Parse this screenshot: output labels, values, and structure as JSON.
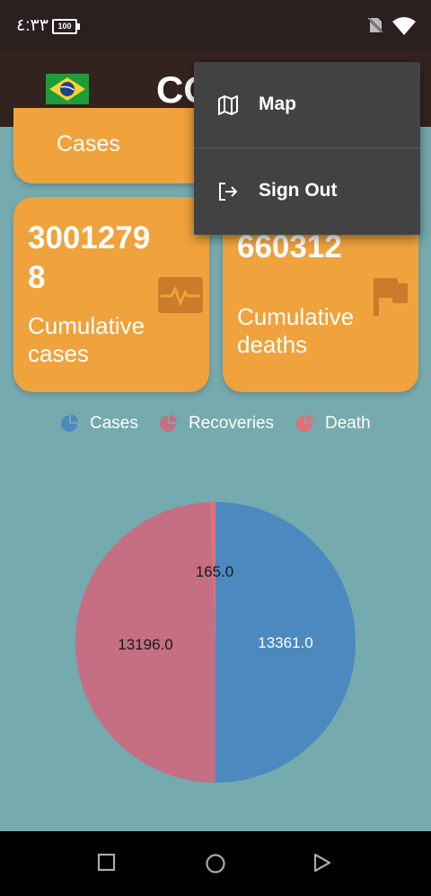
{
  "status_bar": {
    "time": "٤:٣٣",
    "battery": "100"
  },
  "app_bar": {
    "title": "COVID"
  },
  "cards": {
    "top_partial": {
      "label": "Cases"
    },
    "cumulative_cases": {
      "value": "30012798",
      "label": "Cumulative cases"
    },
    "cumulative_deaths": {
      "value": "660312",
      "label": "Cumulative deaths"
    }
  },
  "legend": [
    {
      "label": "Cases",
      "color": "#4b89bf"
    },
    {
      "label": "Recoveries",
      "color": "#c56e84"
    },
    {
      "label": "Death",
      "color": "#e0707a"
    }
  ],
  "chart_data": {
    "type": "pie",
    "categories": [
      "Cases",
      "Recoveries",
      "Death"
    ],
    "values": [
      13361.0,
      13196.0,
      165.0
    ],
    "labels": [
      "13361.0",
      "13196.0",
      "165.0"
    ],
    "colors": [
      "#4b89bf",
      "#c56e84",
      "#e0707a"
    ]
  },
  "menu": {
    "items": [
      {
        "label": "Map",
        "icon": "map-icon"
      },
      {
        "label": "Sign Out",
        "icon": "sign-out-icon"
      }
    ]
  },
  "nav": [
    "recents-button",
    "home-button",
    "back-button"
  ]
}
